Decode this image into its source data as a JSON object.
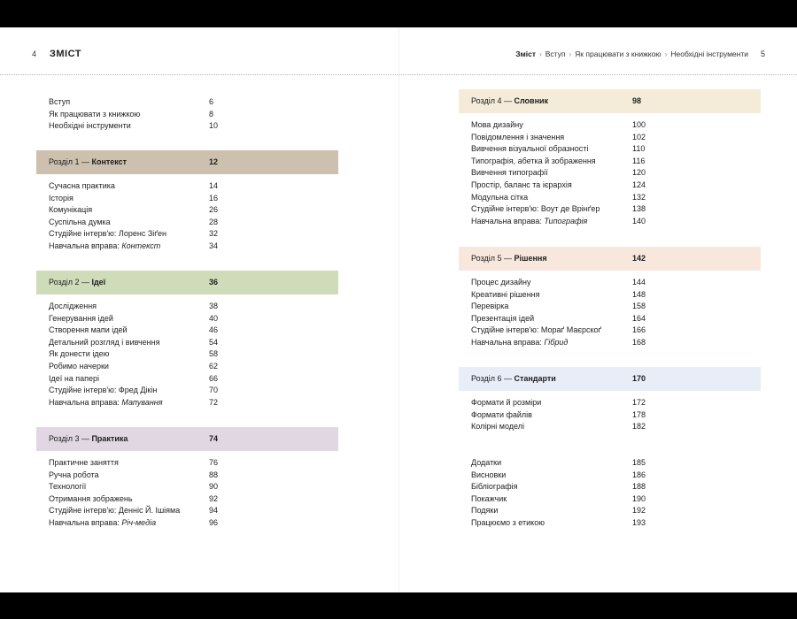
{
  "left_page": {
    "folio": "4",
    "title": "ЗМІСТ",
    "intro": [
      {
        "title": "Вступ",
        "page": "6"
      },
      {
        "title": "Як працювати з книжкою",
        "page": "8"
      },
      {
        "title": "Необхідні інструменти",
        "page": "10"
      }
    ],
    "sections": [
      {
        "label": "Розділ 1 —",
        "name": "Контекст",
        "page": "12",
        "color": "#cdc0ae",
        "items": [
          {
            "title": "Сучасна практика",
            "page": "14"
          },
          {
            "title": "Історія",
            "page": "16"
          },
          {
            "title": "Комунікація",
            "page": "26"
          },
          {
            "title": "Суспільна думка",
            "page": "28"
          },
          {
            "title": "Студійне інтерв'ю: Лоренс Зіґен",
            "page": "32"
          },
          {
            "title": "Навчальна вправа: ",
            "italic": "Контекст",
            "page": "34"
          }
        ]
      },
      {
        "label": "Розділ 2 —",
        "name": "Ідеї",
        "page": "36",
        "color": "#cfdcb9",
        "items": [
          {
            "title": "Дослідження",
            "page": "38"
          },
          {
            "title": "Генерування ідей",
            "page": "40"
          },
          {
            "title": "Створення мапи ідей",
            "page": "46"
          },
          {
            "title": "Детальний розгляд і вивчення",
            "page": "54"
          },
          {
            "title": "Як донести ідею",
            "page": "58"
          },
          {
            "title": "Робимо начерки",
            "page": "62"
          },
          {
            "title": "Ідеї на папері",
            "page": "66"
          },
          {
            "title": "Студійне інтерв'ю: Фред Дікін",
            "page": "70"
          },
          {
            "title": "Навчальна вправа: ",
            "italic": "Мапування",
            "page": "72"
          }
        ]
      },
      {
        "label": "Розділ 3 —",
        "name": "Практика",
        "page": "74",
        "color": "#e0d7e2",
        "items": [
          {
            "title": "Практичне заняття",
            "page": "76"
          },
          {
            "title": "Ручна робота",
            "page": "88"
          },
          {
            "title": "Технології",
            "page": "90"
          },
          {
            "title": "Отримання зображень",
            "page": "92"
          },
          {
            "title": "Студійне інтерв'ю: Денніс Й. Ішіяма",
            "page": "94"
          },
          {
            "title": "Навчальна вправа: ",
            "italic": "Річ-медіа",
            "page": "96"
          }
        ]
      }
    ]
  },
  "right_page": {
    "folio": "5",
    "breadcrumbs": [
      "Зміст",
      "Вступ",
      "Як працювати з книжкою",
      "Необхідні інструменти"
    ],
    "sections": [
      {
        "label": "Розділ 4 —",
        "name": "Словник",
        "page": "98",
        "color": "#f4ecd9",
        "items": [
          {
            "title": "Мова дизайну",
            "page": "100"
          },
          {
            "title": "Повідомлення і значення",
            "page": "102"
          },
          {
            "title": "Вивчення візуальної образності",
            "page": "110"
          },
          {
            "title": "Типографія, абетка й зображення",
            "page": "116"
          },
          {
            "title": "Вивчення типографії",
            "page": "120"
          },
          {
            "title": "Простір, баланс та ієрархія",
            "page": "124"
          },
          {
            "title": "Модульна сітка",
            "page": "132"
          },
          {
            "title": "Студійне інтерв'ю: Воут де Врінґер",
            "page": "138"
          },
          {
            "title": "Навчальна вправа: ",
            "italic": "Типографія",
            "page": "140"
          }
        ]
      },
      {
        "label": "Розділ 5 —",
        "name": "Рішення",
        "page": "142",
        "color": "#f8e7dc",
        "items": [
          {
            "title": "Процес дизайну",
            "page": "144"
          },
          {
            "title": "Креативні рішення",
            "page": "148"
          },
          {
            "title": "Перевірка",
            "page": "158"
          },
          {
            "title": "Презентація ідей",
            "page": "164"
          },
          {
            "title": "Студійне інтерв'ю: Мораґ Маєрскоґ",
            "page": "166"
          },
          {
            "title": "Навчальна вправа: ",
            "italic": "Гібрид",
            "page": "168"
          }
        ]
      },
      {
        "label": "Розділ 6 —",
        "name": "Стандарти",
        "page": "170",
        "color": "#e7eef8",
        "items": [
          {
            "title": "Формати й розміри",
            "page": "172"
          },
          {
            "title": "Формати файлів",
            "page": "178"
          },
          {
            "title": "Колірні моделі",
            "page": "182"
          }
        ]
      }
    ],
    "back_matter": [
      {
        "title": "Додатки",
        "page": "185"
      },
      {
        "title": "Висновки",
        "page": "186"
      },
      {
        "title": "Бібліографія",
        "page": "188"
      },
      {
        "title": "Покажчик",
        "page": "190"
      },
      {
        "title": "Подяки",
        "page": "192"
      },
      {
        "title": "Працюємо з етикою",
        "page": "193"
      }
    ]
  }
}
